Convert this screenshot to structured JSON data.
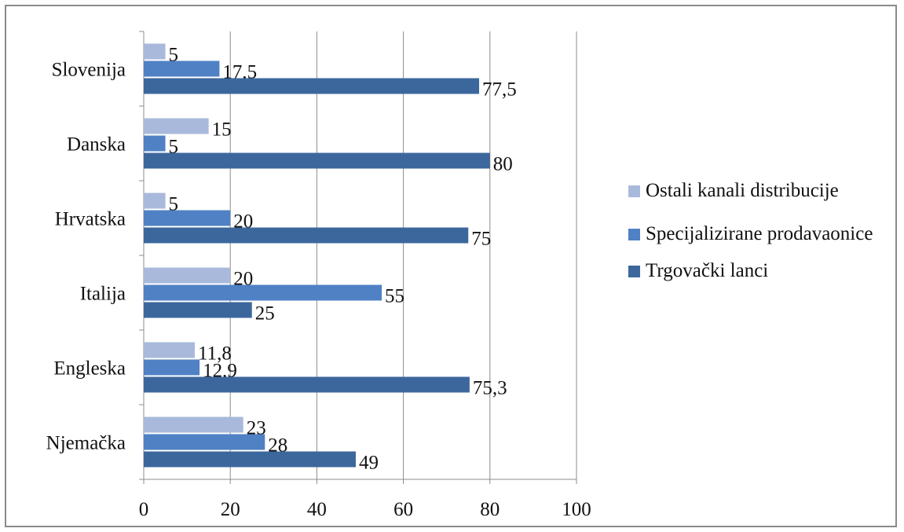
{
  "chart_data": {
    "type": "bar",
    "orientation": "horizontal",
    "categories": [
      "Slovenija",
      "Danska",
      "Hrvatska",
      "Italija",
      "Engleska",
      "Njemačka"
    ],
    "series": [
      {
        "name": "Ostali kanali distribucije",
        "color": "#a8b9db",
        "values": [
          5,
          15,
          5,
          20,
          11.8,
          23
        ],
        "labels": [
          "5",
          "15",
          "5",
          "20",
          "11,8",
          "23"
        ]
      },
      {
        "name": "Specijalizirane prodavaonice",
        "color": "#4f81c4",
        "values": [
          17.5,
          5,
          20,
          55,
          12.9,
          28
        ],
        "labels": [
          "17,5",
          "5",
          "20",
          "55",
          "12,9",
          "28"
        ]
      },
      {
        "name": "Trgovački lanci",
        "color": "#3c679c",
        "values": [
          77.5,
          80,
          75,
          25,
          75.3,
          49
        ],
        "labels": [
          "77,5",
          "80",
          "75",
          "25",
          "75,3",
          "49"
        ]
      }
    ],
    "xlim": [
      0,
      100
    ],
    "xticks": [
      0,
      20,
      40,
      60,
      80,
      100
    ],
    "grid": "vertical",
    "legend": "right",
    "title": "",
    "xlabel": "",
    "ylabel": ""
  }
}
